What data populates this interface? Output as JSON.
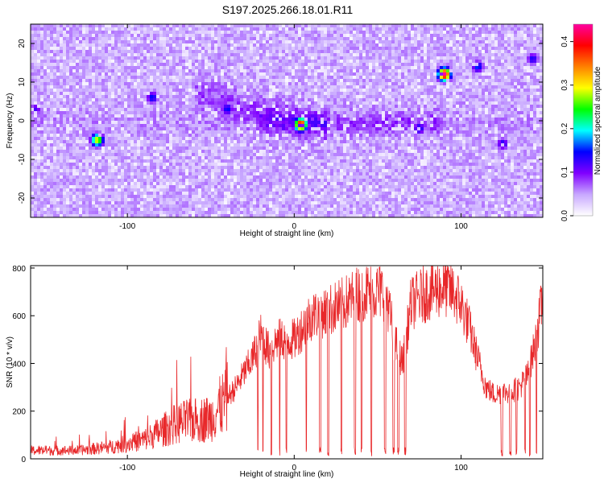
{
  "title": "S197.2025.266.18.01.R11",
  "chart_data": [
    {
      "type": "heatmap",
      "title": "S197.2025.266.18.01.R11",
      "xlabel": "Height of straight line (km)",
      "ylabel": "Frequency (Hz)",
      "xlim": [
        -158,
        149
      ],
      "ylim": [
        -25,
        25
      ],
      "xticks": [
        -100,
        0,
        100
      ],
      "yticks": [
        -20,
        -10,
        0,
        10,
        20
      ],
      "colorbar": {
        "label": "Normalized spectral amplitude",
        "range": [
          0.0,
          0.44
        ],
        "ticks": [
          0.0,
          0.1,
          0.2,
          0.3,
          0.4
        ],
        "colors": [
          "#ffffff",
          "#c8a8ff",
          "#8000ff",
          "#0000ff",
          "#00ffff",
          "#00ff00",
          "#ffff00",
          "#ff8000",
          "#ff0000",
          "#ff00a0"
        ]
      },
      "hotspots": [
        {
          "x": -118,
          "y": -5,
          "amp": 0.3
        },
        {
          "x": 4,
          "y": -1,
          "amp": 0.42
        },
        {
          "x": 90,
          "y": 12,
          "amp": 0.44
        },
        {
          "x": -85,
          "y": 6,
          "amp": 0.15
        },
        {
          "x": -40,
          "y": 3,
          "amp": 0.15
        },
        {
          "x": 75,
          "y": -2,
          "amp": 0.15
        },
        {
          "x": 125,
          "y": -6,
          "amp": 0.14
        },
        {
          "x": 110,
          "y": 14,
          "amp": 0.16
        },
        {
          "x": 143,
          "y": 16,
          "amp": 0.14
        },
        {
          "x": -155,
          "y": 3,
          "amp": 0.12
        }
      ]
    },
    {
      "type": "line",
      "xlabel": "Height of straight line (km)",
      "ylabel": "SNR (10 * v/v)",
      "xlim": [
        -158,
        149
      ],
      "ylim": [
        0,
        810
      ],
      "xticks": [
        -100,
        0,
        100
      ],
      "yticks": [
        0,
        200,
        400,
        600,
        800
      ],
      "color": "#e8282a",
      "envelope_x": [
        -158,
        -130,
        -110,
        -90,
        -70,
        -50,
        -35,
        -25,
        -20,
        -15,
        -10,
        0,
        10,
        20,
        30,
        40,
        55,
        60,
        65,
        70,
        80,
        90,
        95,
        100,
        105,
        110,
        115,
        120,
        125,
        130,
        135,
        140,
        145,
        149
      ],
      "envelope_y": [
        35,
        35,
        50,
        80,
        150,
        170,
        300,
        420,
        520,
        450,
        500,
        500,
        600,
        620,
        650,
        700,
        700,
        500,
        400,
        650,
        700,
        720,
        700,
        650,
        550,
        420,
        300,
        270,
        280,
        280,
        300,
        350,
        500,
        680
      ],
      "dropouts": [
        [
          -22,
          -21.5
        ],
        [
          -19,
          -18.5
        ],
        [
          -14,
          -13.5
        ],
        [
          -9,
          -8.5
        ],
        [
          -5,
          -4.5
        ],
        [
          7,
          7.5
        ],
        [
          15,
          16
        ],
        [
          20,
          20.8
        ],
        [
          28,
          28.6
        ],
        [
          36,
          37
        ],
        [
          40,
          40.6
        ],
        [
          46,
          46.6
        ],
        [
          54,
          55
        ],
        [
          59,
          60
        ],
        [
          62,
          63
        ],
        [
          66,
          67
        ],
        [
          124,
          125
        ],
        [
          129,
          130
        ],
        [
          133,
          133.6
        ],
        [
          138,
          138.7
        ],
        [
          141,
          141.5
        ],
        [
          145,
          145.5
        ]
      ]
    }
  ]
}
